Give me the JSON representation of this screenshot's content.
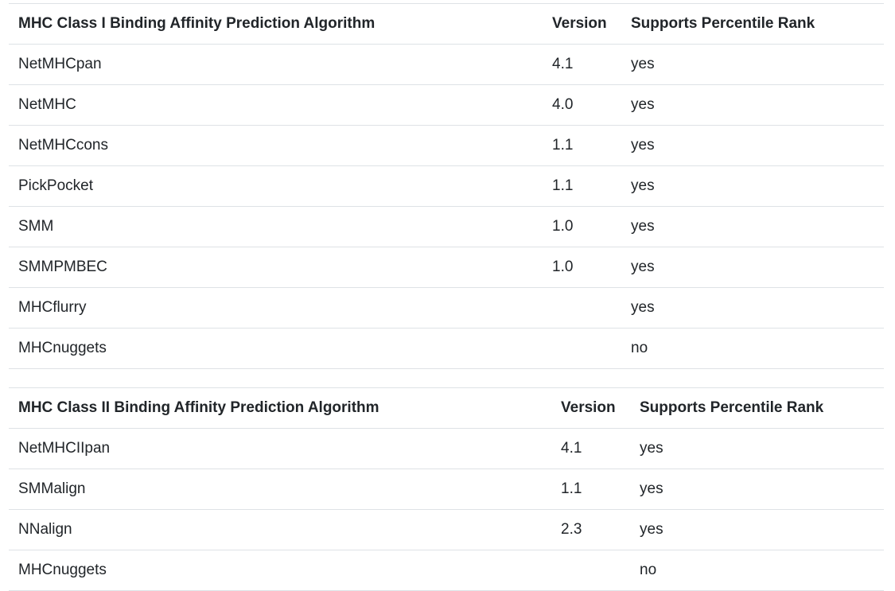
{
  "class1": {
    "headers": {
      "algorithm": "MHC Class I Binding Affinity Prediction Algorithm",
      "version": "Version",
      "percentile": "Supports Percentile Rank"
    },
    "rows": [
      {
        "name": "NetMHCpan",
        "version": "4.1",
        "percentile": "yes"
      },
      {
        "name": "NetMHC",
        "version": "4.0",
        "percentile": "yes"
      },
      {
        "name": "NetMHCcons",
        "version": "1.1",
        "percentile": "yes"
      },
      {
        "name": "PickPocket",
        "version": "1.1",
        "percentile": "yes"
      },
      {
        "name": "SMM",
        "version": "1.0",
        "percentile": "yes"
      },
      {
        "name": "SMMPMBEC",
        "version": "1.0",
        "percentile": "yes"
      },
      {
        "name": "MHCflurry",
        "version": "",
        "percentile": "yes"
      },
      {
        "name": "MHCnuggets",
        "version": "",
        "percentile": "no"
      }
    ]
  },
  "class2": {
    "headers": {
      "algorithm": "MHC Class II Binding Affinity Prediction Algorithm",
      "version": "Version",
      "percentile": "Supports Percentile Rank"
    },
    "rows": [
      {
        "name": "NetMHCIIpan",
        "version": "4.1",
        "percentile": "yes"
      },
      {
        "name": "SMMalign",
        "version": "1.1",
        "percentile": "yes"
      },
      {
        "name": "NNalign",
        "version": "2.3",
        "percentile": "yes"
      },
      {
        "name": "MHCnuggets",
        "version": "",
        "percentile": "no"
      }
    ]
  }
}
